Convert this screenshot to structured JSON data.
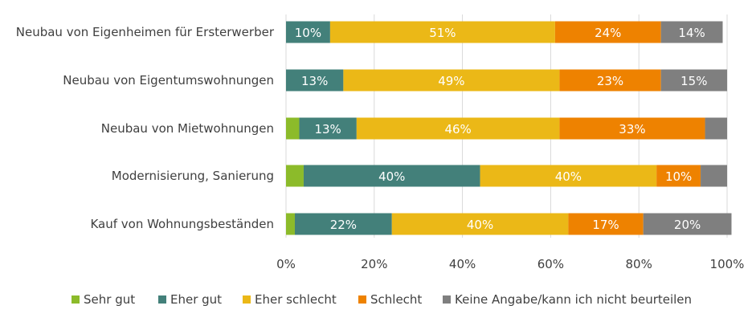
{
  "chart_data": {
    "type": "bar",
    "orientation": "horizontal",
    "stacked": true,
    "categories": [
      "Neubau von Eigenheimen für Ersterwerber",
      "Neubau von Eigentumswohnungen",
      "Neubau von Mietwohnungen",
      "Modernisierung, Sanierung",
      "Kauf von Wohnungsbeständen"
    ],
    "series": [
      {
        "name": "Sehr gut",
        "color": "#8cbb2a",
        "values": [
          0,
          0,
          3,
          4,
          2
        ]
      },
      {
        "name": "Eher gut",
        "color": "#43807a",
        "values": [
          10,
          13,
          13,
          40,
          22
        ]
      },
      {
        "name": "Eher schlecht",
        "color": "#ebb817",
        "values": [
          51,
          49,
          46,
          40,
          40
        ]
      },
      {
        "name": "Schlecht",
        "color": "#ee8200",
        "values": [
          24,
          23,
          33,
          10,
          17
        ]
      },
      {
        "name": "Keine Angabe/kann ich nicht beurteilen",
        "color": "#7f7f7f",
        "values": [
          14,
          15,
          5,
          6,
          20
        ]
      }
    ],
    "data_labels_shown_min": 10,
    "xlim": [
      0,
      100
    ],
    "xticks": [
      "0%",
      "20%",
      "40%",
      "60%",
      "80%",
      "100%"
    ],
    "grid": "vertical",
    "legend": "bottom"
  }
}
